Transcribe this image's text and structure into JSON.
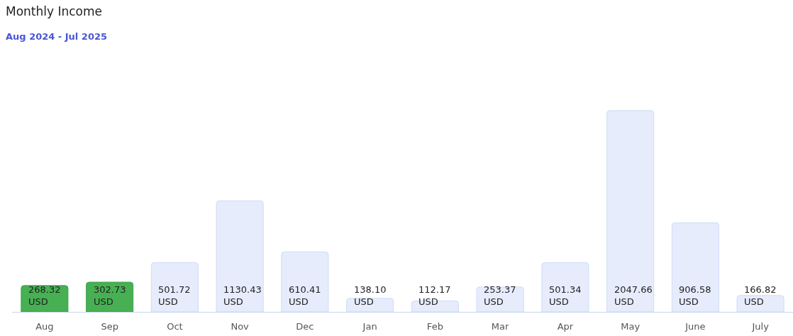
{
  "chart_data": {
    "type": "bar",
    "title": "Monthly Income",
    "subtitle": "Aug 2024 - Jul 2025",
    "categories": [
      "Aug",
      "Sep",
      "Oct",
      "Nov",
      "Dec",
      "Jan",
      "Feb",
      "Mar",
      "Apr",
      "May",
      "June",
      "July"
    ],
    "values": [
      268.32,
      302.73,
      501.72,
      1130.43,
      610.41,
      138.1,
      112.17,
      253.37,
      501.34,
      2047.66,
      906.58,
      166.82
    ],
    "colors": [
      "#47b052",
      "#47b052",
      "#e6ecfc",
      "#e6ecfc",
      "#e6ecfc",
      "#e6ecfc",
      "#e6ecfc",
      "#e6ecfc",
      "#e6ecfc",
      "#e6ecfc",
      "#e6ecfc",
      "#e6ecfc"
    ],
    "value_labels": [
      "268.32\nUSD",
      "302.73\nUSD",
      "501.72\nUSD",
      "1130.43\nUSD",
      "610.41\nUSD",
      "138.10\nUSD",
      "112.17\nUSD",
      "253.37\nUSD",
      "501.34\nUSD",
      "2047.66\nUSD",
      "906.58\nUSD",
      "166.82\nUSD"
    ]
  }
}
